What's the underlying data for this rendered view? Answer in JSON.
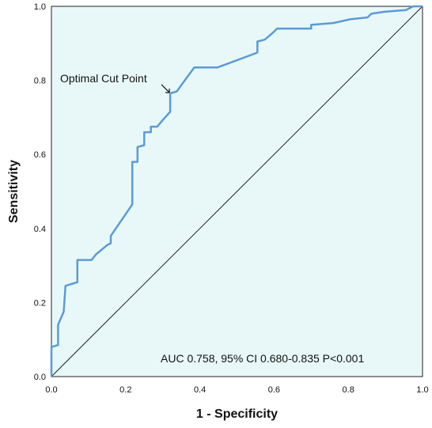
{
  "chart_data": {
    "type": "line",
    "title": "",
    "xlabel": "1 - Specificity",
    "ylabel": "Sensitivity",
    "xlim": [
      0.0,
      1.0
    ],
    "ylim": [
      0.0,
      1.0
    ],
    "x_ticks": [
      "0.0",
      "0.2",
      "0.4",
      "0.6",
      "0.8",
      "1.0"
    ],
    "y_ticks": [
      "0.0",
      "0.2",
      "0.4",
      "0.6",
      "0.8",
      "1.0"
    ],
    "grid": false,
    "background_color": "#e8f8f8",
    "series": [
      {
        "color": "#5b9bd5",
        "points": [
          [
            0.0,
            0.0
          ],
          [
            0.0,
            0.08
          ],
          [
            0.018,
            0.085
          ],
          [
            0.018,
            0.14
          ],
          [
            0.033,
            0.175
          ],
          [
            0.038,
            0.245
          ],
          [
            0.07,
            0.255
          ],
          [
            0.07,
            0.315
          ],
          [
            0.108,
            0.315
          ],
          [
            0.12,
            0.33
          ],
          [
            0.15,
            0.355
          ],
          [
            0.16,
            0.36
          ],
          [
            0.16,
            0.38
          ],
          [
            0.218,
            0.465
          ],
          [
            0.218,
            0.58
          ],
          [
            0.232,
            0.58
          ],
          [
            0.232,
            0.62
          ],
          [
            0.25,
            0.625
          ],
          [
            0.25,
            0.66
          ],
          [
            0.268,
            0.66
          ],
          [
            0.268,
            0.675
          ],
          [
            0.285,
            0.675
          ],
          [
            0.302,
            0.695
          ],
          [
            0.32,
            0.715
          ],
          [
            0.32,
            0.765
          ],
          [
            0.338,
            0.77
          ],
          [
            0.352,
            0.79
          ],
          [
            0.385,
            0.835
          ],
          [
            0.448,
            0.835
          ],
          [
            0.555,
            0.875
          ],
          [
            0.555,
            0.905
          ],
          [
            0.575,
            0.91
          ],
          [
            0.598,
            0.93
          ],
          [
            0.608,
            0.94
          ],
          [
            0.7,
            0.94
          ],
          [
            0.7,
            0.95
          ],
          [
            0.76,
            0.955
          ],
          [
            0.805,
            0.965
          ],
          [
            0.852,
            0.97
          ],
          [
            0.862,
            0.98
          ],
          [
            0.895,
            0.985
          ],
          [
            0.955,
            0.99
          ],
          [
            0.975,
            1.0
          ],
          [
            1.0,
            1.0
          ]
        ]
      },
      {
        "color": "#222222",
        "points": [
          [
            0.0,
            0.0
          ],
          [
            1.0,
            1.0
          ]
        ]
      }
    ],
    "annotations": {
      "optimal": {
        "text": "Optimal Cut Point",
        "target_x": 0.32,
        "target_y": 0.765
      },
      "auc": {
        "text": "AUC 0.758, 95% CI 0.680-0.835 P<0.001"
      }
    }
  }
}
